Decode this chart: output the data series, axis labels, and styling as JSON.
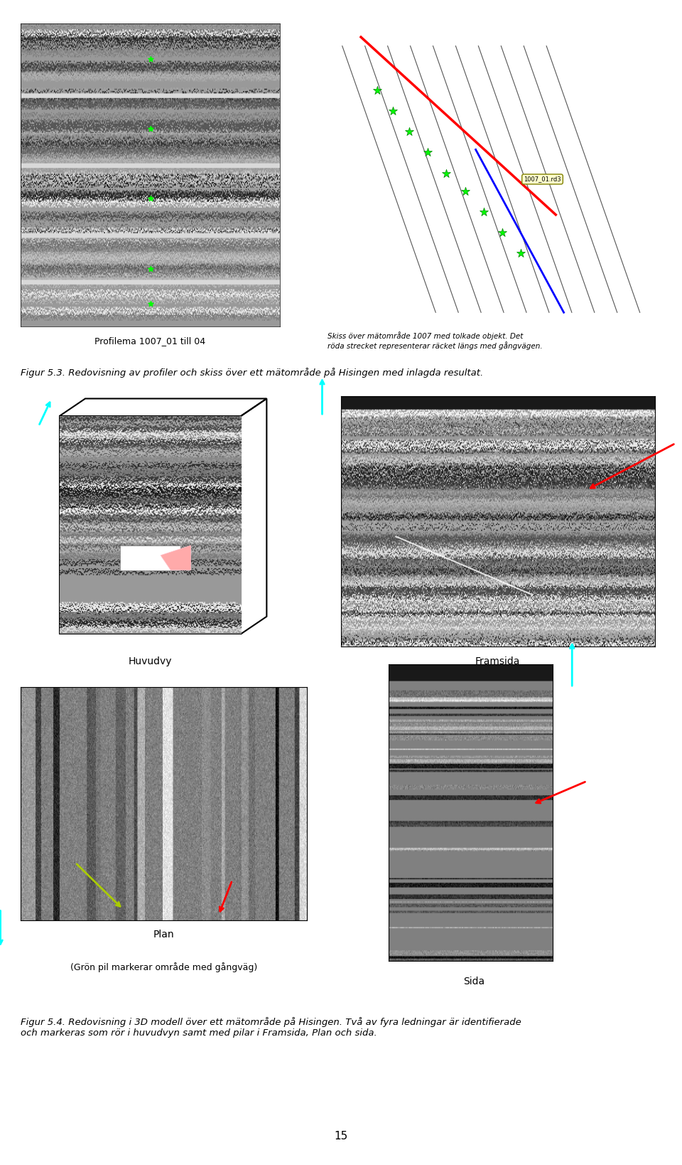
{
  "title_fig53": "Figur 5.3. Redovisning av profiler och skiss över ett mätområde på Hisingen med inlagda resultat.",
  "title_fig54": "Figur 5.4. Redovisning i 3D modell över ett mätområde på Hisingen. Två av fyra ledningar är identifierade\noch markeras som rör i huvudvyn samt med pilar i Framsida, Plan och sida.",
  "caption_profiles": "Profilema 1007_01 till 04",
  "caption_skiss": "Skiss över mätområde 1007 med tolkade objekt. Det\nröda strecket representerar räcket längs med gångvägen.",
  "label_huvudvy": "Huvudvy",
  "label_framsida": "Framsida",
  "label_plan": "Plan",
  "label_sida": "Sida",
  "page_number": "15",
  "bg_color": "#ffffff",
  "text_color": "#000000",
  "fig_caption_style": "italic"
}
